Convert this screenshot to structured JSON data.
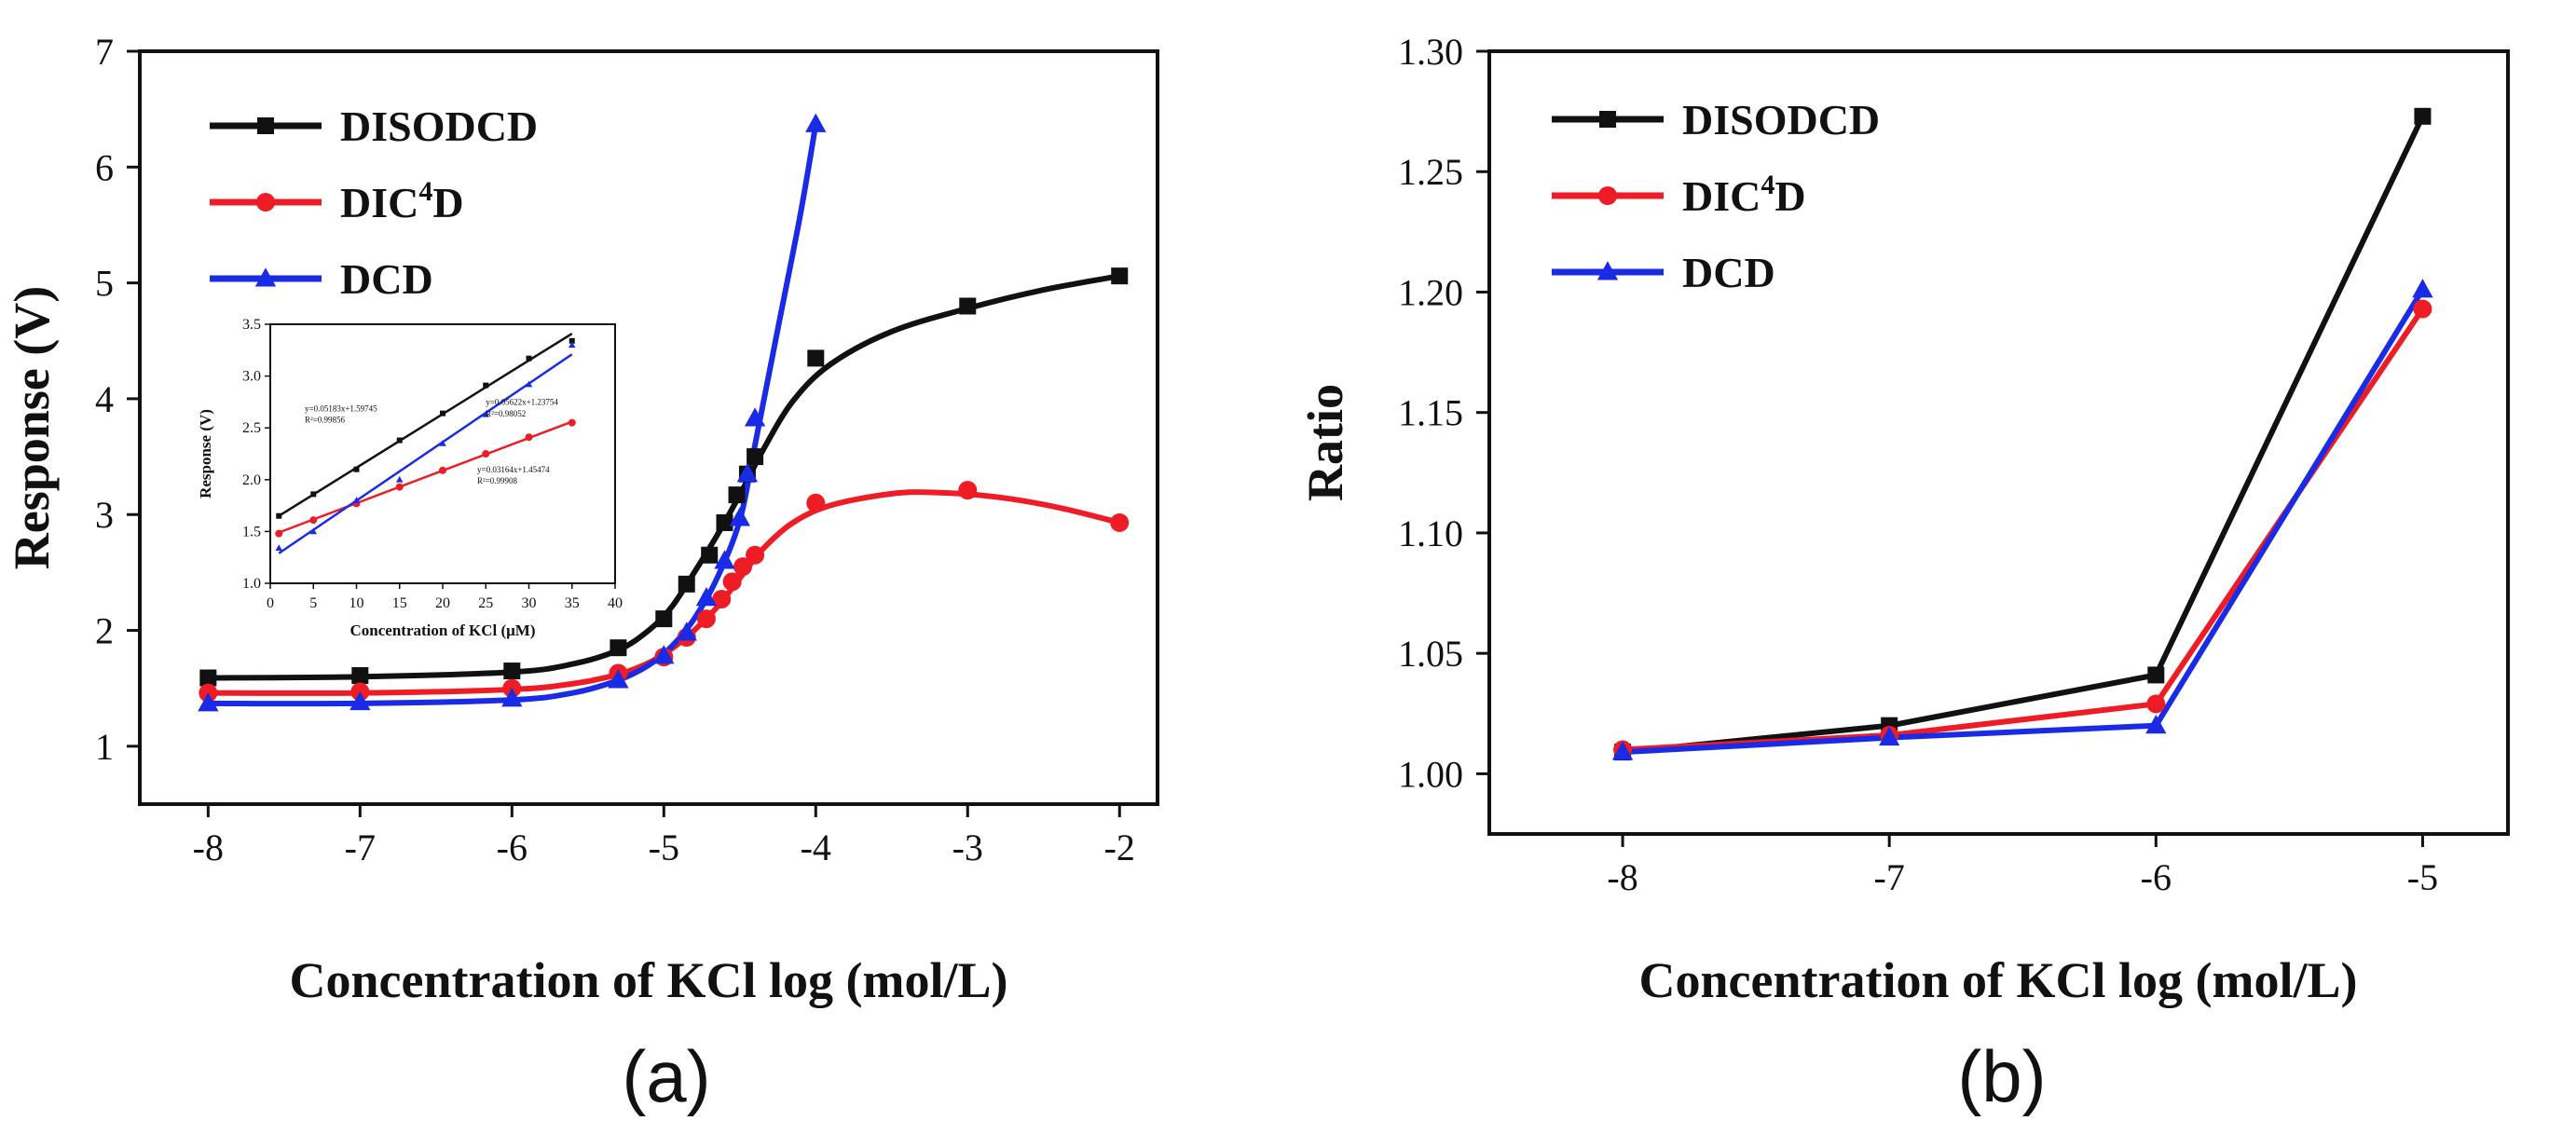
{
  "chart_data": [
    {
      "id": "a",
      "type": "line",
      "caption": "(a)",
      "title": "",
      "xlabel": "Concentration of KCl log (mol/L)",
      "ylabel": "Response (V)",
      "xlim": [
        -8.45,
        -1.75
      ],
      "ylim": [
        0.5,
        7.0
      ],
      "xticks": [
        -8,
        -7,
        -6,
        -5,
        -4,
        -3,
        -2
      ],
      "yticks": [
        1,
        2,
        3,
        4,
        5,
        6,
        7
      ],
      "legend_position": "top-left",
      "series": [
        {
          "name": "DISODCD",
          "color": "#111111",
          "marker": "square",
          "points": [
            [
              -8,
              1.59
            ],
            [
              -7,
              1.61
            ],
            [
              -6,
              1.65
            ],
            [
              -5.3,
              1.85
            ],
            [
              -5,
              2.1
            ],
            [
              -4.85,
              2.4
            ],
            [
              -4.7,
              2.65
            ],
            [
              -4.6,
              2.93
            ],
            [
              -4.52,
              3.17
            ],
            [
              -4.45,
              3.35
            ],
            [
              -4.4,
              3.5
            ],
            [
              -4,
              4.35
            ],
            [
              -3,
              4.8
            ],
            [
              -2,
              5.06
            ]
          ],
          "curve": [
            [
              -8,
              1.59
            ],
            [
              -7,
              1.6
            ],
            [
              -6,
              1.64
            ],
            [
              -5.6,
              1.71
            ],
            [
              -5.3,
              1.83
            ],
            [
              -5.1,
              2.0
            ],
            [
              -4.95,
              2.2
            ],
            [
              -4.8,
              2.5
            ],
            [
              -4.65,
              2.82
            ],
            [
              -4.5,
              3.17
            ],
            [
              -4.35,
              3.55
            ],
            [
              -4.15,
              3.98
            ],
            [
              -3.9,
              4.3
            ],
            [
              -3.5,
              4.58
            ],
            [
              -3,
              4.78
            ],
            [
              -2.5,
              4.94
            ],
            [
              -2,
              5.06
            ]
          ]
        },
        {
          "name": "DIC4D",
          "label_main": "DIC",
          "label_sup": "4",
          "label_end": "D",
          "color": "#ee1c24",
          "marker": "circle",
          "points": [
            [
              -8,
              1.46
            ],
            [
              -7,
              1.47
            ],
            [
              -6,
              1.5
            ],
            [
              -5.3,
              1.63
            ],
            [
              -5,
              1.77
            ],
            [
              -4.85,
              1.94
            ],
            [
              -4.72,
              2.1
            ],
            [
              -4.62,
              2.27
            ],
            [
              -4.55,
              2.42
            ],
            [
              -4.48,
              2.55
            ],
            [
              -4.4,
              2.65
            ],
            [
              -4,
              3.1
            ],
            [
              -3,
              3.21
            ],
            [
              -2,
              2.93
            ]
          ],
          "curve": [
            [
              -8,
              1.46
            ],
            [
              -7,
              1.46
            ],
            [
              -6,
              1.49
            ],
            [
              -5.6,
              1.54
            ],
            [
              -5.3,
              1.62
            ],
            [
              -5.1,
              1.72
            ],
            [
              -4.95,
              1.84
            ],
            [
              -4.8,
              2.0
            ],
            [
              -4.65,
              2.2
            ],
            [
              -4.5,
              2.45
            ],
            [
              -4.35,
              2.7
            ],
            [
              -4.15,
              2.93
            ],
            [
              -3.9,
              3.08
            ],
            [
              -3.5,
              3.18
            ],
            [
              -3.2,
              3.19
            ],
            [
              -2.8,
              3.15
            ],
            [
              -2.4,
              3.06
            ],
            [
              -2,
              2.93
            ]
          ]
        },
        {
          "name": "DCD",
          "color": "#1a2be6",
          "marker": "triangle",
          "points": [
            [
              -8,
              1.37
            ],
            [
              -7,
              1.38
            ],
            [
              -6,
              1.41
            ],
            [
              -5.3,
              1.57
            ],
            [
              -5,
              1.78
            ],
            [
              -4.85,
              1.98
            ],
            [
              -4.72,
              2.28
            ],
            [
              -4.6,
              2.6
            ],
            [
              -4.5,
              2.97
            ],
            [
              -4.45,
              3.35
            ],
            [
              -4.4,
              3.83
            ],
            [
              -4,
              6.37
            ]
          ],
          "curve": [
            [
              -8,
              1.37
            ],
            [
              -7,
              1.37
            ],
            [
              -6,
              1.4
            ],
            [
              -5.6,
              1.46
            ],
            [
              -5.3,
              1.57
            ],
            [
              -5.1,
              1.7
            ],
            [
              -4.95,
              1.86
            ],
            [
              -4.8,
              2.1
            ],
            [
              -4.65,
              2.45
            ],
            [
              -4.5,
              2.95
            ],
            [
              -4.4,
              3.6
            ],
            [
              -4.25,
              4.6
            ],
            [
              -4.1,
              5.6
            ],
            [
              -4,
              6.37
            ]
          ]
        }
      ],
      "inset": {
        "xlabel": "Concentration of KCl (μM)",
        "ylabel": "Response (V)",
        "xlim": [
          0,
          40
        ],
        "ylim": [
          1.0,
          3.5
        ],
        "xticks": [
          0,
          5,
          10,
          15,
          20,
          25,
          30,
          35,
          40
        ],
        "yticks": [
          1.0,
          1.5,
          2.0,
          2.5,
          3.0,
          3.5
        ],
        "annotations": [
          {
            "text": "y=0.05183x+1.59745",
            "x": 4,
            "y": 2.66
          },
          {
            "text": "R²=0.99856",
            "x": 4,
            "y": 2.55
          },
          {
            "text": "y=0.05622x+1.23754",
            "x": 25,
            "y": 2.72
          },
          {
            "text": "R²=0.98052",
            "x": 25,
            "y": 2.61
          },
          {
            "text": "y=0.03164x+1.45474",
            "x": 24,
            "y": 2.07
          },
          {
            "text": "R²=0.99908",
            "x": 24,
            "y": 1.96
          }
        ],
        "series": [
          {
            "name": "DISODCD",
            "color": "#111111",
            "marker": "square",
            "points": [
              [
                1,
                1.65
              ],
              [
                5,
                1.86
              ],
              [
                10,
                2.1
              ],
              [
                15,
                2.38
              ],
              [
                20,
                2.64
              ],
              [
                25,
                2.91
              ],
              [
                30,
                3.17
              ],
              [
                35,
                3.34
              ]
            ],
            "fit": [
              [
                1,
                1.65
              ],
              [
                35,
                3.41
              ]
            ]
          },
          {
            "name": "DIC4D",
            "color": "#ee1c24",
            "marker": "circle",
            "points": [
              [
                1,
                1.48
              ],
              [
                5,
                1.61
              ],
              [
                10,
                1.77
              ],
              [
                15,
                1.93
              ],
              [
                20,
                2.09
              ],
              [
                25,
                2.25
              ],
              [
                30,
                2.41
              ],
              [
                35,
                2.55
              ]
            ],
            "fit": [
              [
                1,
                1.49
              ],
              [
                35,
                2.56
              ]
            ]
          },
          {
            "name": "DCD",
            "color": "#1a2be6",
            "marker": "triangle",
            "points": [
              [
                1,
                1.34
              ],
              [
                5,
                1.5
              ],
              [
                10,
                1.8
              ],
              [
                15,
                2.0
              ],
              [
                20,
                2.35
              ],
              [
                25,
                2.63
              ],
              [
                30,
                2.92
              ],
              [
                35,
                3.3
              ]
            ],
            "fit": [
              [
                1,
                1.29
              ],
              [
                35,
                3.21
              ]
            ]
          }
        ]
      }
    },
    {
      "id": "b",
      "type": "line",
      "caption": "(b)",
      "title": "",
      "xlabel": "Concentration of KCl log (mol/L)",
      "ylabel": "Ratio",
      "xlim": [
        -8.5,
        -4.68
      ],
      "ylim": [
        0.975,
        1.3
      ],
      "xticks": [
        -8,
        -7,
        -6,
        -5
      ],
      "yticks": [
        1.0,
        1.05,
        1.1,
        1.15,
        1.2,
        1.25,
        1.3
      ],
      "ytick_labels": [
        "1.00",
        "1.05",
        "1.10",
        "1.15",
        "1.20",
        "1.25",
        "1.30"
      ],
      "legend_position": "top-left",
      "series": [
        {
          "name": "DISODCD",
          "color": "#111111",
          "marker": "square",
          "points": [
            [
              -8,
              1.009
            ],
            [
              -7,
              1.02
            ],
            [
              -6,
              1.041
            ],
            [
              -5,
              1.273
            ]
          ]
        },
        {
          "name": "DIC4D",
          "label_main": "DIC",
          "label_sup": "4",
          "label_end": "D",
          "color": "#ee1c24",
          "marker": "circle",
          "points": [
            [
              -8,
              1.01
            ],
            [
              -7,
              1.016
            ],
            [
              -6,
              1.029
            ],
            [
              -5,
              1.193
            ]
          ]
        },
        {
          "name": "DCD",
          "color": "#1a2be6",
          "marker": "triangle",
          "points": [
            [
              -8,
              1.009
            ],
            [
              -7,
              1.015
            ],
            [
              -6,
              1.02
            ],
            [
              -5,
              1.201
            ]
          ]
        }
      ]
    }
  ]
}
